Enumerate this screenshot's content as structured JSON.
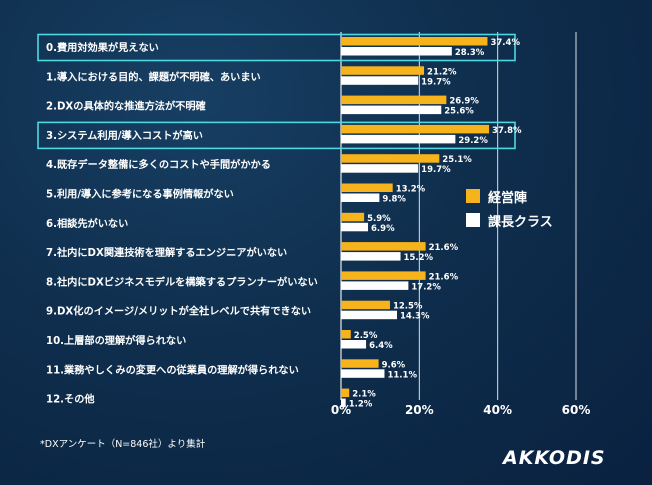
{
  "chart_data": {
    "type": "bar",
    "orientation": "horizontal",
    "categories": [
      "0.費用対効果が見えない",
      "1.導入における目的、課題が不明確、あいまい",
      "2.DXの具体的な推進方法が不明確",
      "3.システム利用/導入コストが高い",
      "4.既存データ整備に多くのコストや手間がかかる",
      "5.利用/導入に参考になる事例情報がない",
      "6.相談先がいない",
      "7.社内にDX関連技術を理解するエンジニアがいない",
      "8.社内にDXビジネスモデルを構築するプランナーがいない",
      "9.DX化のイメージ/メリットが全社レベルで共有できない",
      "10.上層部の理解が得られない",
      "11.業務やしくみの変更への従業員の理解が得られない",
      "12.その他"
    ],
    "series": [
      {
        "name": "経営陣",
        "color": "#f6b31b",
        "values": [
          37.4,
          21.2,
          26.9,
          37.8,
          25.1,
          13.2,
          5.9,
          21.6,
          21.6,
          12.5,
          2.5,
          9.6,
          2.1
        ],
        "labels": [
          "37.4%",
          "21.2%",
          "26.9%",
          "37.8%",
          "25.1%",
          "13.2%",
          "5.9%",
          "21.6%",
          "21.6%",
          "12.5%",
          "2.5%",
          "9.6%",
          "2.1%"
        ]
      },
      {
        "name": "課長クラス",
        "color": "#ffffff",
        "values": [
          28.3,
          19.7,
          25.6,
          29.2,
          19.7,
          9.8,
          6.9,
          15.2,
          17.2,
          14.3,
          6.4,
          11.1,
          1.2
        ],
        "labels": [
          "28.3%",
          "19.7%",
          "25.6%",
          "29.2%",
          "19.7%",
          "9.8%",
          "6.9%",
          "15.2%",
          "17.2%",
          "14.3%",
          "6.4%",
          "11.1%",
          "1.2%"
        ]
      }
    ],
    "xlim": [
      0,
      60
    ],
    "xticks": [
      0,
      20,
      40,
      60
    ],
    "xtick_labels": [
      "0%",
      "20%",
      "40%",
      "60%"
    ],
    "highlighted": [
      0,
      3
    ],
    "highlight_color": "#4fd8e0",
    "legend_position": "right",
    "grid": true
  },
  "footnote": "*DXアンケート（N=846社）より集計",
  "logo": "AKKODIS"
}
